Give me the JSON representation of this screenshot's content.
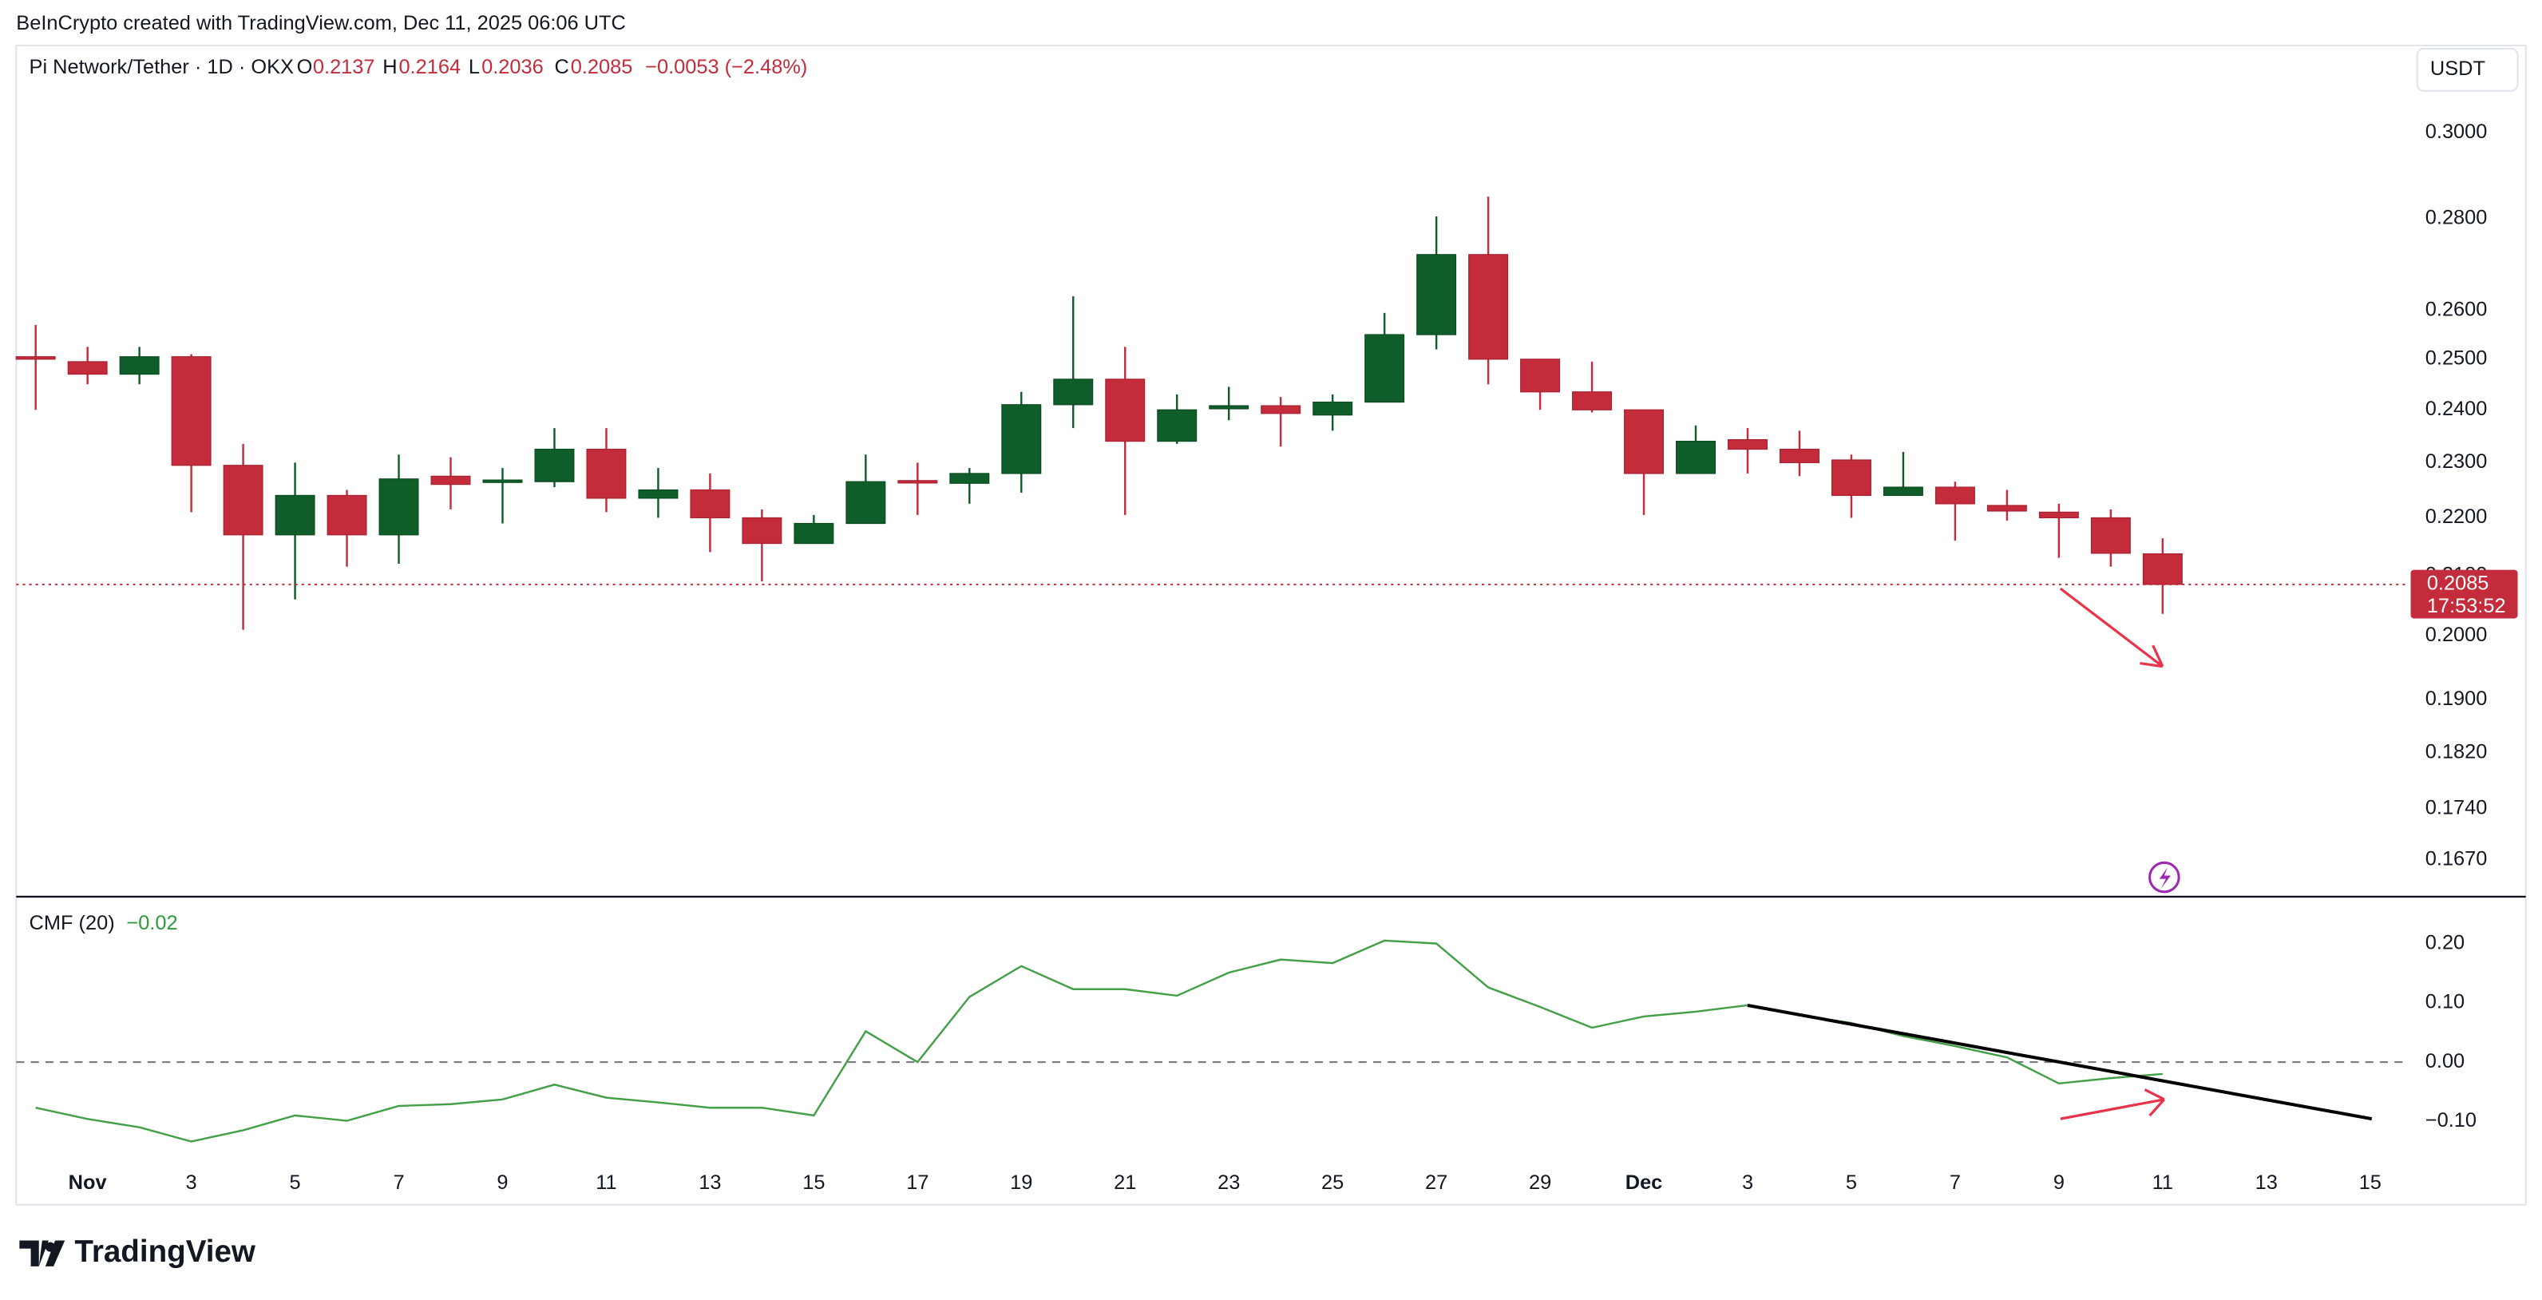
{
  "header": {
    "credit": "BeInCrypto created with TradingView.com, Dec 11, 2025 06:06 UTC",
    "symbol": "Pi Network/Tether · 1D · OKX",
    "o_label": "O",
    "h_label": "H",
    "l_label": "L",
    "c_label": "C",
    "change": "−0.0053 (−2.48%)",
    "currency": "USDT",
    "countdown": "17:53:52",
    "logo": "TradingView"
  },
  "chart_data": [
    {
      "type": "candlestick",
      "log_scale": true,
      "grid": false,
      "up_color": "#0f5e2a",
      "down_color": "#c42b3b",
      "categories": [
        null,
        "Nov",
        null,
        "3",
        null,
        "5",
        null,
        "7",
        null,
        "9",
        null,
        "11",
        null,
        "13",
        null,
        "15",
        null,
        "17",
        null,
        "19",
        null,
        "21",
        null,
        "23",
        null,
        "25",
        null,
        "27",
        null,
        "29",
        null,
        "Dec",
        null,
        "3",
        null,
        "5",
        null,
        "7",
        null,
        "9",
        null,
        "11",
        null,
        "13",
        null,
        "15"
      ],
      "open": [
        0.2505,
        0.2495,
        0.247,
        0.2505,
        0.2295,
        0.217,
        0.224,
        0.217,
        0.2275,
        0.2265,
        0.2265,
        0.2325,
        0.2235,
        0.225,
        0.22,
        0.2155,
        0.219,
        0.2267,
        0.2262,
        0.228,
        0.241,
        0.246,
        0.234,
        0.2402,
        0.2408,
        0.239,
        0.2415,
        0.255,
        0.272,
        0.25,
        0.2435,
        0.24,
        0.228,
        0.2343,
        0.2325,
        0.2305,
        0.224,
        0.2255,
        0.2222,
        0.221,
        0.22,
        0.2137,
        null,
        null,
        null,
        null
      ],
      "high": [
        0.257,
        0.2525,
        0.2525,
        0.251,
        0.2335,
        0.23,
        0.225,
        0.2315,
        0.231,
        0.229,
        0.2365,
        0.2365,
        0.229,
        0.228,
        0.2215,
        0.2205,
        0.2315,
        0.23,
        0.229,
        0.2435,
        0.263,
        0.2525,
        0.243,
        0.2445,
        0.2425,
        0.243,
        0.2595,
        0.2805,
        0.285,
        0.25,
        0.2495,
        0.24,
        0.237,
        0.2365,
        0.236,
        0.2315,
        0.232,
        0.2265,
        0.225,
        0.2225,
        0.2215,
        0.2164,
        null,
        null,
        null,
        null
      ],
      "low": [
        0.24,
        0.245,
        0.245,
        0.221,
        0.201,
        0.206,
        0.2115,
        0.212,
        0.2215,
        0.219,
        0.2255,
        0.221,
        0.22,
        0.214,
        0.209,
        0.2155,
        0.219,
        0.2205,
        0.2225,
        0.2245,
        0.2365,
        0.2205,
        0.2335,
        0.238,
        0.233,
        0.236,
        0.2415,
        0.252,
        0.245,
        0.24,
        0.2395,
        0.2205,
        0.228,
        0.228,
        0.2275,
        0.22,
        0.224,
        0.216,
        0.2195,
        0.213,
        0.2115,
        0.2036,
        null,
        null,
        null,
        null
      ],
      "close": [
        0.25,
        0.247,
        0.2505,
        0.2295,
        0.217,
        0.224,
        0.217,
        0.227,
        0.226,
        0.2268,
        0.2325,
        0.2235,
        0.225,
        0.22,
        0.2155,
        0.219,
        0.2265,
        0.2265,
        0.228,
        0.241,
        0.246,
        0.234,
        0.24,
        0.2408,
        0.2393,
        0.2415,
        0.255,
        0.272,
        0.25,
        0.2435,
        0.24,
        0.228,
        0.234,
        0.2325,
        0.23,
        0.224,
        0.2255,
        0.2225,
        0.2212,
        0.22,
        0.2138,
        0.2085,
        null,
        null,
        null,
        null
      ],
      "ylim": [
        0.1621,
        0.3211
      ],
      "yticks": [
        {
          "value": 0.3,
          "label": "0.3000"
        },
        {
          "value": 0.28,
          "label": "0.2800"
        },
        {
          "value": 0.26,
          "label": "0.2600"
        },
        {
          "value": 0.25,
          "label": "0.2500"
        },
        {
          "value": 0.24,
          "label": "0.2400"
        },
        {
          "value": 0.23,
          "label": "0.2300"
        },
        {
          "value": 0.22,
          "label": "0.2200"
        },
        {
          "value": 0.21,
          "label": "0.2100"
        },
        {
          "value": 0.2,
          "label": "0.2000"
        },
        {
          "value": 0.19,
          "label": "0.1900"
        },
        {
          "value": 0.182,
          "label": "0.1820"
        },
        {
          "value": 0.174,
          "label": "0.1740"
        },
        {
          "value": 0.167,
          "label": "0.1670"
        }
      ]
    },
    {
      "type": "line",
      "title": "CMF (20)",
      "last_value_label": "−0.02",
      "series": [
        {
          "name": "CMF (20)",
          "color": "#43a047",
          "values": [
            -0.077,
            -0.096,
            -0.11,
            -0.134,
            -0.115,
            -0.09,
            -0.099,
            -0.074,
            -0.071,
            -0.063,
            -0.038,
            -0.06,
            -0.068,
            -0.077,
            -0.077,
            -0.09,
            0.052,
            0.0,
            0.11,
            0.162,
            0.123,
            0.123,
            0.112,
            0.151,
            0.173,
            0.167,
            0.205,
            0.2,
            0.126,
            0.093,
            0.058,
            0.077,
            0.085,
            0.096,
            0.079,
            0.066,
            0.044,
            0.027,
            0.008,
            -0.036,
            -0.027,
            -0.02,
            null,
            null,
            null,
            null
          ]
        }
      ],
      "ylim": [
        -0.238,
        0.279
      ],
      "yticks": [
        {
          "value": 0.2,
          "label": "0.20"
        },
        {
          "value": 0.1,
          "label": "0.10"
        },
        {
          "value": 0,
          "label": "0.00"
        },
        {
          "value": -0.1,
          "label": "−0.10"
        }
      ]
    }
  ]
}
